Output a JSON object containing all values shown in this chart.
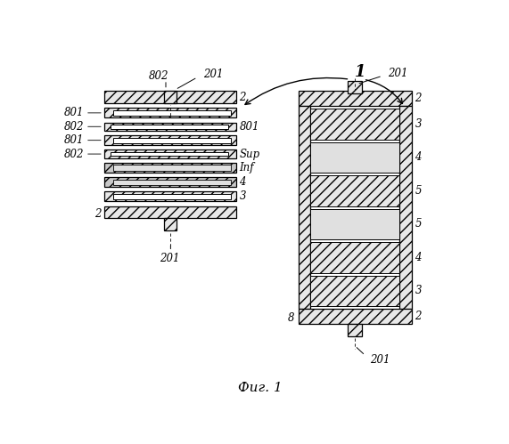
{
  "fig_label": "Фиг. 1",
  "bg_color": "#ffffff",
  "line_color": "#000000",
  "fig_width": 5.71,
  "fig_height": 4.99,
  "dpi": 100
}
